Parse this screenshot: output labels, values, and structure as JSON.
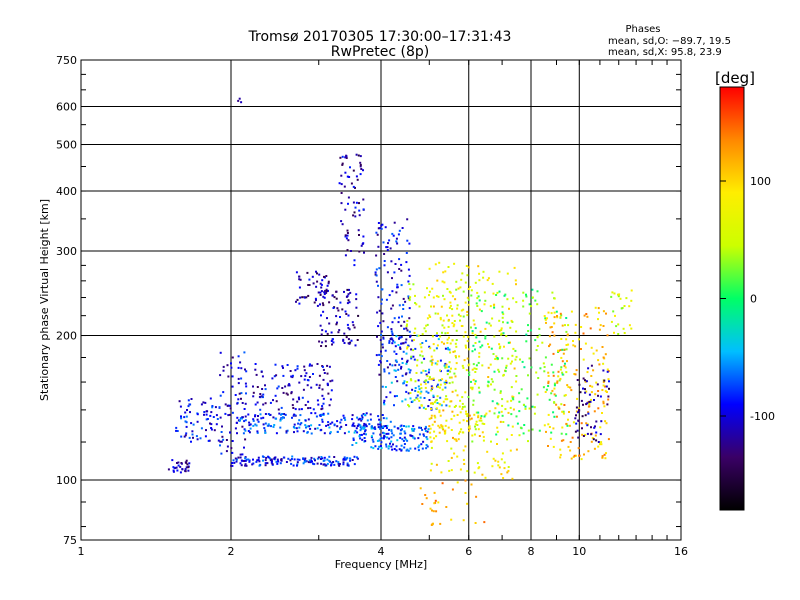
{
  "chart_data": {
    "type": "scatter",
    "title": "Tromsø 20170305 17:30:00–17:31:43",
    "subtitle": "RwPretec (8p)",
    "xlabel": "Frequency [MHz]",
    "ylabel": "Stationary phase Virtual Height [km]",
    "x_scale": "log",
    "y_scale": "log",
    "xlim": [
      1,
      16
    ],
    "ylim": [
      75,
      750
    ],
    "x_ticks": [
      1,
      2,
      4,
      6,
      8,
      10,
      16
    ],
    "y_ticks": [
      75,
      100,
      200,
      300,
      400,
      500,
      600,
      750
    ],
    "grid": true,
    "legend_title": "Phases",
    "legend_lines": [
      "mean, sd,O: −89.7, 19.5",
      "mean, sd,X:  95.8, 23.9"
    ],
    "colorbar": {
      "label": "[deg]",
      "range": [
        -180,
        180
      ],
      "ticks": [
        100,
        0,
        -100
      ],
      "colormap": [
        "#000000",
        "#3a0066",
        "#0000ff",
        "#00bfff",
        "#00ff66",
        "#ccff00",
        "#ffee00",
        "#ff8800",
        "#ff0000"
      ]
    },
    "clusters": [
      {
        "f": [
          1.5,
          1.65
        ],
        "h": [
          103,
          111
        ],
        "phase": -110,
        "n": 30
      },
      {
        "f": [
          1.55,
          1.9
        ],
        "h": [
          120,
          148
        ],
        "phase": -95,
        "n": 70
      },
      {
        "f": [
          1.9,
          2.15
        ],
        "h": [
          112,
          188
        ],
        "phase": -100,
        "n": 70
      },
      {
        "f": [
          2.0,
          3.6
        ],
        "h": [
          107,
          112
        ],
        "phase": -90,
        "n": 150
      },
      {
        "f": [
          2.05,
          4.2
        ],
        "h": [
          125,
          138
        ],
        "phase": -80,
        "n": 200
      },
      {
        "f": [
          2.2,
          3.2
        ],
        "h": [
          140,
          175
        ],
        "phase": -105,
        "n": 120
      },
      {
        "f": [
          2.7,
          3.2
        ],
        "h": [
          230,
          272
        ],
        "phase": -115,
        "n": 50
      },
      {
        "f": [
          3.0,
          3.6
        ],
        "h": [
          190,
          250
        ],
        "phase": -120,
        "n": 80
      },
      {
        "f": [
          3.3,
          3.7
        ],
        "h": [
          280,
          480
        ],
        "phase": -115,
        "n": 70
      },
      {
        "f": [
          3.5,
          5.0
        ],
        "h": [
          115,
          130
        ],
        "phase": -70,
        "n": 150
      },
      {
        "f": [
          3.9,
          4.6
        ],
        "h": [
          160,
          350
        ],
        "phase": -100,
        "n": 150
      },
      {
        "f": [
          4.0,
          5.5
        ],
        "h": [
          140,
          200
        ],
        "phase": -70,
        "n": 120
      },
      {
        "f": [
          4.5,
          6.0
        ],
        "h": [
          140,
          260
        ],
        "phase": 60,
        "n": 160
      },
      {
        "f": [
          5.0,
          6.5
        ],
        "h": [
          120,
          140
        ],
        "phase": 100,
        "n": 60
      },
      {
        "f": [
          5.0,
          7.5
        ],
        "h": [
          100,
          290
        ],
        "phase": 80,
        "n": 250
      },
      {
        "f": [
          6.0,
          9.5
        ],
        "h": [
          120,
          250
        ],
        "phase": 20,
        "n": 220
      },
      {
        "f": [
          8.5,
          11.5
        ],
        "h": [
          110,
          230
        ],
        "phase": 110,
        "n": 200
      },
      {
        "f": [
          9.8,
          11.5
        ],
        "h": [
          120,
          180
        ],
        "phase": -120,
        "n": 60
      },
      {
        "f": [
          11.5,
          12.8
        ],
        "h": [
          200,
          250
        ],
        "phase": 60,
        "n": 25
      },
      {
        "f": [
          2.05,
          2.1
        ],
        "h": [
          610,
          625
        ],
        "phase": -140,
        "n": 3
      },
      {
        "f": [
          4.8,
          6.5
        ],
        "h": [
          80,
          100
        ],
        "phase": 120,
        "n": 30
      }
    ]
  }
}
